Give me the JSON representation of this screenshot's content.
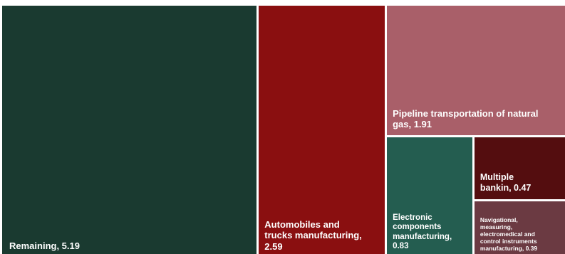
{
  "chart_data": {
    "type": "treemap",
    "title": "",
    "items": [
      {
        "label": "Remaining",
        "value": 5.19,
        "text": "Remaining,  5.19",
        "color": "#1a3a30"
      },
      {
        "label": "Automobiles and trucks manufacturing",
        "value": 2.59,
        "text": "Automobiles and\ntrucks manufacturing,\n2.59",
        "color": "#8a0f10"
      },
      {
        "label": "Pipeline transportation of natural gas",
        "value": 1.91,
        "text": "Pipeline transportation of natural\ngas,  1.91",
        "color": "#a95f69"
      },
      {
        "label": "Electronic components manufacturing",
        "value": 0.83,
        "text": "Electronic\ncomponents\nmanufacturing,\n0.83",
        "color": "#245d50"
      },
      {
        "label": "Multiple bankin",
        "value": 0.47,
        "text": "Multiple\nbankin,  0.47",
        "color": "#540d0f"
      },
      {
        "label": "Navigational, measuring, electromedical and control instruments manufacturing",
        "value": 0.39,
        "text": "Navigational,\nmeasuring,\nelectromedical and\ncontrol instruments\nmanufacturing,  0.39",
        "color": "#6b3a42"
      }
    ]
  }
}
